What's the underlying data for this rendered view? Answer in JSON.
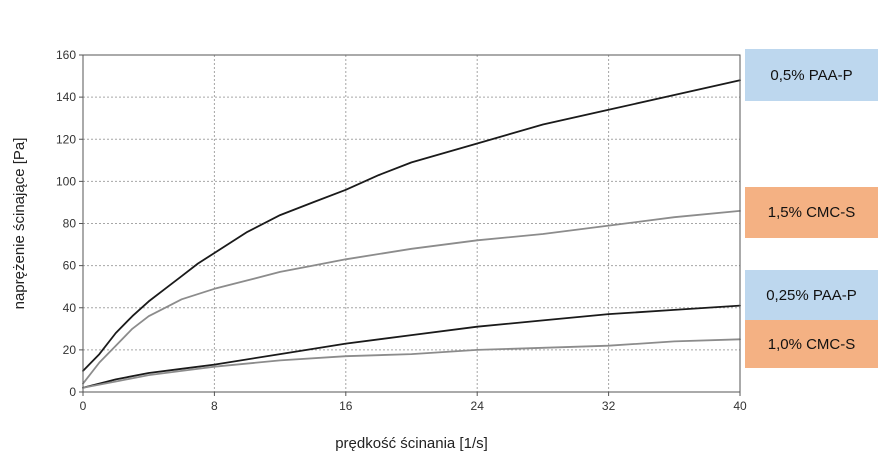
{
  "chart_data": {
    "type": "line",
    "xlabel": "prędkość ścinania [1/s]",
    "ylabel": "naprężenie ścinające [Pa]",
    "xlim": [
      0,
      40
    ],
    "ylim": [
      0,
      160
    ],
    "xticks": [
      0,
      8,
      16,
      24,
      32,
      40
    ],
    "yticks": [
      0,
      20,
      40,
      60,
      80,
      100,
      120,
      140,
      160
    ],
    "grid": true,
    "series": [
      {
        "name": "0,5% PAA-P",
        "color": "#1a1a1a",
        "legend_bg": "#bdd7ee",
        "x": [
          0,
          1,
          2,
          3,
          4,
          5,
          6,
          7,
          8,
          10,
          12,
          14,
          16,
          18,
          20,
          24,
          28,
          32,
          36,
          40
        ],
        "y": [
          10,
          18,
          28,
          36,
          43,
          49,
          55,
          61,
          66,
          76,
          84,
          90,
          96,
          103,
          109,
          118,
          127,
          134,
          141,
          148
        ]
      },
      {
        "name": "1,5% CMC-S",
        "color": "#8c8c8c",
        "legend_bg": "#f4b183",
        "x": [
          0,
          1,
          2,
          3,
          4,
          5,
          6,
          8,
          10,
          12,
          14,
          16,
          20,
          24,
          28,
          32,
          36,
          40
        ],
        "y": [
          4,
          14,
          22,
          30,
          36,
          40,
          44,
          49,
          53,
          57,
          60,
          63,
          68,
          72,
          75,
          79,
          83,
          86
        ]
      },
      {
        "name": "0,25% PAA-P",
        "color": "#1a1a1a",
        "legend_bg": "#bdd7ee",
        "x": [
          0,
          2,
          4,
          6,
          8,
          12,
          16,
          20,
          24,
          28,
          32,
          36,
          40
        ],
        "y": [
          2,
          6,
          9,
          11,
          13,
          18,
          23,
          27,
          31,
          34,
          37,
          39,
          41
        ]
      },
      {
        "name": "1,0% CMC-S",
        "color": "#8c8c8c",
        "legend_bg": "#f4b183",
        "x": [
          0,
          2,
          4,
          6,
          8,
          12,
          16,
          20,
          24,
          28,
          32,
          36,
          40
        ],
        "y": [
          2,
          5,
          8,
          10,
          12,
          15,
          17,
          18,
          20,
          21,
          22,
          24,
          25
        ]
      }
    ]
  }
}
